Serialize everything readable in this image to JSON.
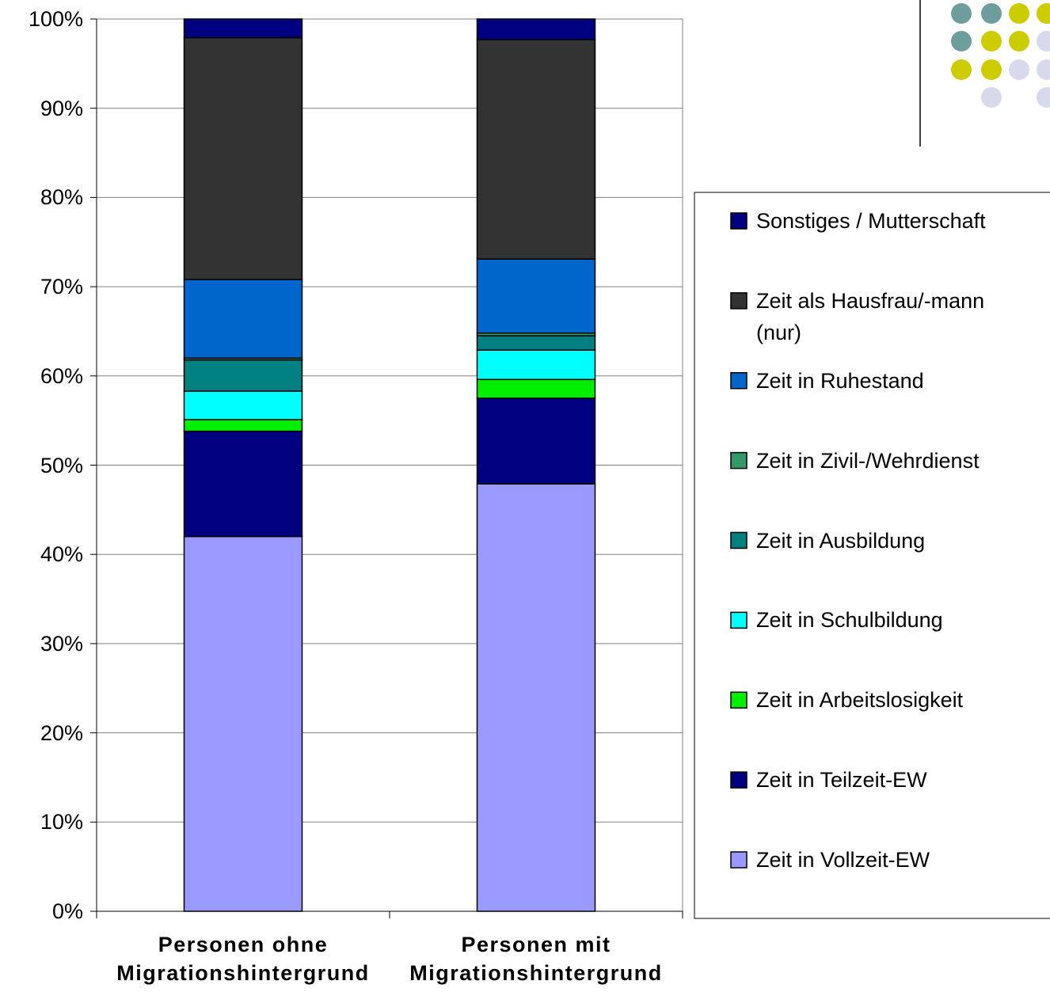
{
  "chart_data": {
    "type": "stacked_bar",
    "categories": [
      "Personen ohne Migrationshintergrund",
      "Personen mit Migrationshintergrund"
    ],
    "series": [
      {
        "name": "Zeit in Vollzeit-EW",
        "color": "#9999ff",
        "values": [
          42.0,
          47.9
        ]
      },
      {
        "name": "Zeit in Teilzeit-EW",
        "color": "#000080",
        "values": [
          11.8,
          9.6
        ]
      },
      {
        "name": "Zeit in Arbeitslosigkeit",
        "color": "#00ee00",
        "values": [
          1.3,
          2.1
        ]
      },
      {
        "name": "Zeit in Schulbildung",
        "color": "#00ffff",
        "values": [
          3.2,
          3.3
        ]
      },
      {
        "name": "Zeit in Ausbildung",
        "color": "#008080",
        "values": [
          3.5,
          1.6
        ]
      },
      {
        "name": "Zeit in Zivil-/Wehrdienst",
        "color": "#339966",
        "values": [
          0.2,
          0.3
        ]
      },
      {
        "name": "Zeit in Ruhestand",
        "color": "#0066cc",
        "values": [
          8.8,
          8.3
        ]
      },
      {
        "name": "Zeit als Hausfrau/-mann (nur)",
        "color": "#333333",
        "values": [
          27.1,
          24.6
        ]
      },
      {
        "name": "Sonstiges / Mutterschaft",
        "color": "#000080",
        "values": [
          2.1,
          2.3
        ]
      }
    ],
    "ylim": [
      0,
      100
    ],
    "yticks": [
      {
        "value": 0,
        "label": "0%"
      },
      {
        "value": 10,
        "label": "10%"
      },
      {
        "value": 20,
        "label": "20%"
      },
      {
        "value": 30,
        "label": "30%"
      },
      {
        "value": 40,
        "label": "40%"
      },
      {
        "value": 50,
        "label": "50%"
      },
      {
        "value": 60,
        "label": "60%"
      },
      {
        "value": 70,
        "label": "70%"
      },
      {
        "value": 80,
        "label": "80%"
      },
      {
        "value": 90,
        "label": "90%"
      },
      {
        "value": 100,
        "label": "100%"
      }
    ],
    "grid": true,
    "legend": "right"
  }
}
